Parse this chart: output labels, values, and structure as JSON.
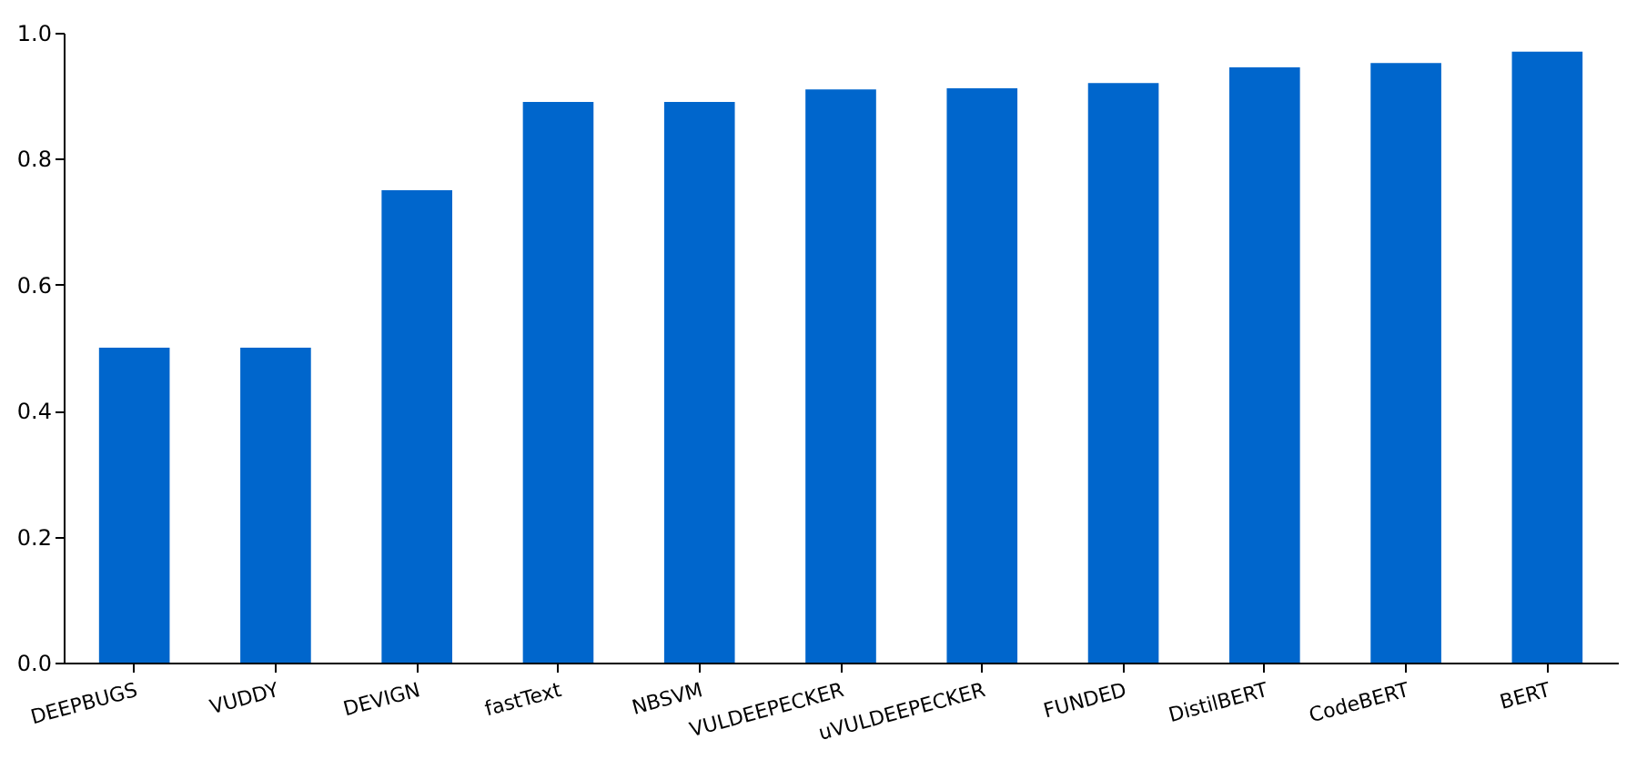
{
  "chart_data": {
    "type": "bar",
    "categories": [
      "DEEPBUGS",
      "VUDDY",
      "DEVIGN",
      "fastText",
      "NBSVM",
      "VULDEEPECKER",
      "uVULDEEPECKER",
      "FUNDED",
      "DistilBERT",
      "CodeBERT",
      "BERT"
    ],
    "values": [
      0.5,
      0.5,
      0.75,
      0.89,
      0.89,
      0.91,
      0.912,
      0.92,
      0.945,
      0.952,
      0.97
    ],
    "color": "#0066cc",
    "ylim": [
      0,
      1
    ],
    "yticks": [
      {
        "value": 0,
        "label": "0.0"
      },
      0.2,
      0.4,
      0.6,
      0.8,
      {
        "value": 1,
        "label": "1.0"
      }
    ],
    "grid": false
  }
}
